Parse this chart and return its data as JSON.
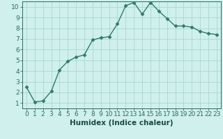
{
  "x": [
    0,
    1,
    2,
    3,
    4,
    5,
    6,
    7,
    8,
    9,
    10,
    11,
    12,
    13,
    14,
    15,
    16,
    17,
    18,
    19,
    20,
    21,
    22,
    23
  ],
  "y": [
    2.5,
    1.1,
    1.2,
    2.1,
    4.1,
    4.9,
    5.3,
    5.5,
    6.9,
    7.1,
    7.2,
    8.4,
    10.1,
    10.4,
    9.3,
    10.4,
    9.6,
    8.9,
    8.2,
    8.2,
    8.1,
    7.7,
    7.5,
    7.4
  ],
  "xlabel": "Humidex (Indice chaleur)",
  "ylim": [
    0.5,
    10.5
  ],
  "xlim": [
    -0.5,
    23.5
  ],
  "yticks": [
    1,
    2,
    3,
    4,
    5,
    6,
    7,
    8,
    9,
    10
  ],
  "xticks": [
    0,
    1,
    2,
    3,
    4,
    5,
    6,
    7,
    8,
    9,
    10,
    11,
    12,
    13,
    14,
    15,
    16,
    17,
    18,
    19,
    20,
    21,
    22,
    23
  ],
  "line_color": "#2e7b6a",
  "marker": "D",
  "marker_size": 2.5,
  "bg_color": "#cff0ec",
  "grid_color": "#aad8d0",
  "tick_color": "#2e6b5e",
  "label_color": "#1a4a40",
  "xlabel_fontsize": 7.5,
  "tick_fontsize": 6.5,
  "linewidth": 1.0
}
